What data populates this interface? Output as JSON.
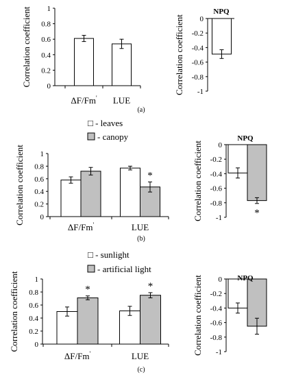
{
  "colors": {
    "leaves": "#ffffff",
    "canopy": "#c0c0c0",
    "sunlight": "#ffffff",
    "artificial": "#c0c0c0",
    "stroke": "#000000"
  },
  "chart_data": [
    {
      "id": "a-left",
      "type": "bar",
      "panel": "(a)",
      "ylabel": "Correlation coefficient",
      "ylim": [
        0,
        1
      ],
      "yticks": [
        "0",
        "0.2",
        "0.4",
        "0.6",
        "0.8",
        "1"
      ],
      "categories": [
        "ΔF/Fm",
        "LUE"
      ],
      "category_sup": [
        "'",
        ""
      ],
      "series": [
        {
          "color": "#ffffff",
          "values": [
            0.61,
            0.54
          ],
          "errors": [
            0.04,
            0.06
          ],
          "sig": [
            false,
            false
          ]
        }
      ]
    },
    {
      "id": "a-right",
      "type": "bar",
      "title": "NPQ",
      "ylabel": "Correlation coefficient",
      "ylim": [
        -1,
        0
      ],
      "yticks": [
        "0",
        "-0.2",
        "-0.4",
        "-0.6",
        "-0.8",
        "-1"
      ],
      "series": [
        {
          "color": "#ffffff",
          "values": [
            -0.49
          ],
          "errors": [
            0.06
          ],
          "sig": [
            false
          ]
        }
      ]
    },
    {
      "id": "b-left",
      "type": "bar",
      "panel": "(b)",
      "ylabel": "Correlation coefficient",
      "ylim": [
        0,
        1
      ],
      "yticks": [
        "0",
        "0.2",
        "0.4",
        "0.6",
        "0.8",
        "1"
      ],
      "categories": [
        "ΔF/Fm",
        "LUE"
      ],
      "category_sup": [
        "'",
        ""
      ],
      "legend": [
        "□ - leaves",
        "- canopy"
      ],
      "series": [
        {
          "name": "leaves",
          "color": "#ffffff",
          "values": [
            0.58,
            0.77
          ],
          "errors": [
            0.05,
            0.03
          ],
          "sig": [
            false,
            false
          ]
        },
        {
          "name": "canopy",
          "color": "#c0c0c0",
          "values": [
            0.72,
            0.47
          ],
          "errors": [
            0.06,
            0.08
          ],
          "sig": [
            false,
            true
          ]
        }
      ]
    },
    {
      "id": "b-right",
      "type": "bar",
      "title": "NPQ",
      "ylabel": "Correlation coefficient",
      "ylim": [
        -1,
        0
      ],
      "yticks": [
        "0",
        "-0.2",
        "-0.4",
        "-0.6",
        "-0.8",
        "-1"
      ],
      "series": [
        {
          "name": "leaves",
          "color": "#ffffff",
          "values": [
            -0.39
          ],
          "errors": [
            0.07
          ],
          "sig": [
            false
          ]
        },
        {
          "name": "canopy",
          "color": "#c0c0c0",
          "values": [
            -0.77
          ],
          "errors": [
            0.04
          ],
          "sig": [
            true
          ]
        }
      ]
    },
    {
      "id": "c-left",
      "type": "bar",
      "panel": "(c)",
      "ylabel": "Correlation coefficient",
      "ylim": [
        0,
        1
      ],
      "yticks": [
        "0",
        "0.2",
        "0.4",
        "0.6",
        "0.8",
        "1"
      ],
      "categories": [
        "ΔF/Fm",
        "LUE"
      ],
      "category_sup": [
        "'",
        ""
      ],
      "legend": [
        "□ - sunlight",
        "- artificial light"
      ],
      "series": [
        {
          "name": "sunlight",
          "color": "#ffffff",
          "values": [
            0.5,
            0.51
          ],
          "errors": [
            0.07,
            0.07
          ],
          "sig": [
            false,
            false
          ]
        },
        {
          "name": "artificial light",
          "color": "#c0c0c0",
          "values": [
            0.71,
            0.75
          ],
          "errors": [
            0.03,
            0.04
          ],
          "sig": [
            true,
            true
          ]
        }
      ]
    },
    {
      "id": "c-right",
      "type": "bar",
      "title": "NPQ",
      "ylabel": "Correlation coefficient",
      "ylim": [
        -1,
        0
      ],
      "yticks": [
        "0",
        "-0.2",
        "-0.4",
        "-0.6",
        "-0.8",
        "-1"
      ],
      "series": [
        {
          "name": "sunlight",
          "color": "#ffffff",
          "values": [
            -0.4
          ],
          "errors": [
            0.07
          ],
          "sig": [
            false
          ]
        },
        {
          "name": "artificial light",
          "color": "#c0c0c0",
          "values": [
            -0.65
          ],
          "errors": [
            0.11
          ],
          "sig": [
            false
          ]
        }
      ]
    }
  ]
}
